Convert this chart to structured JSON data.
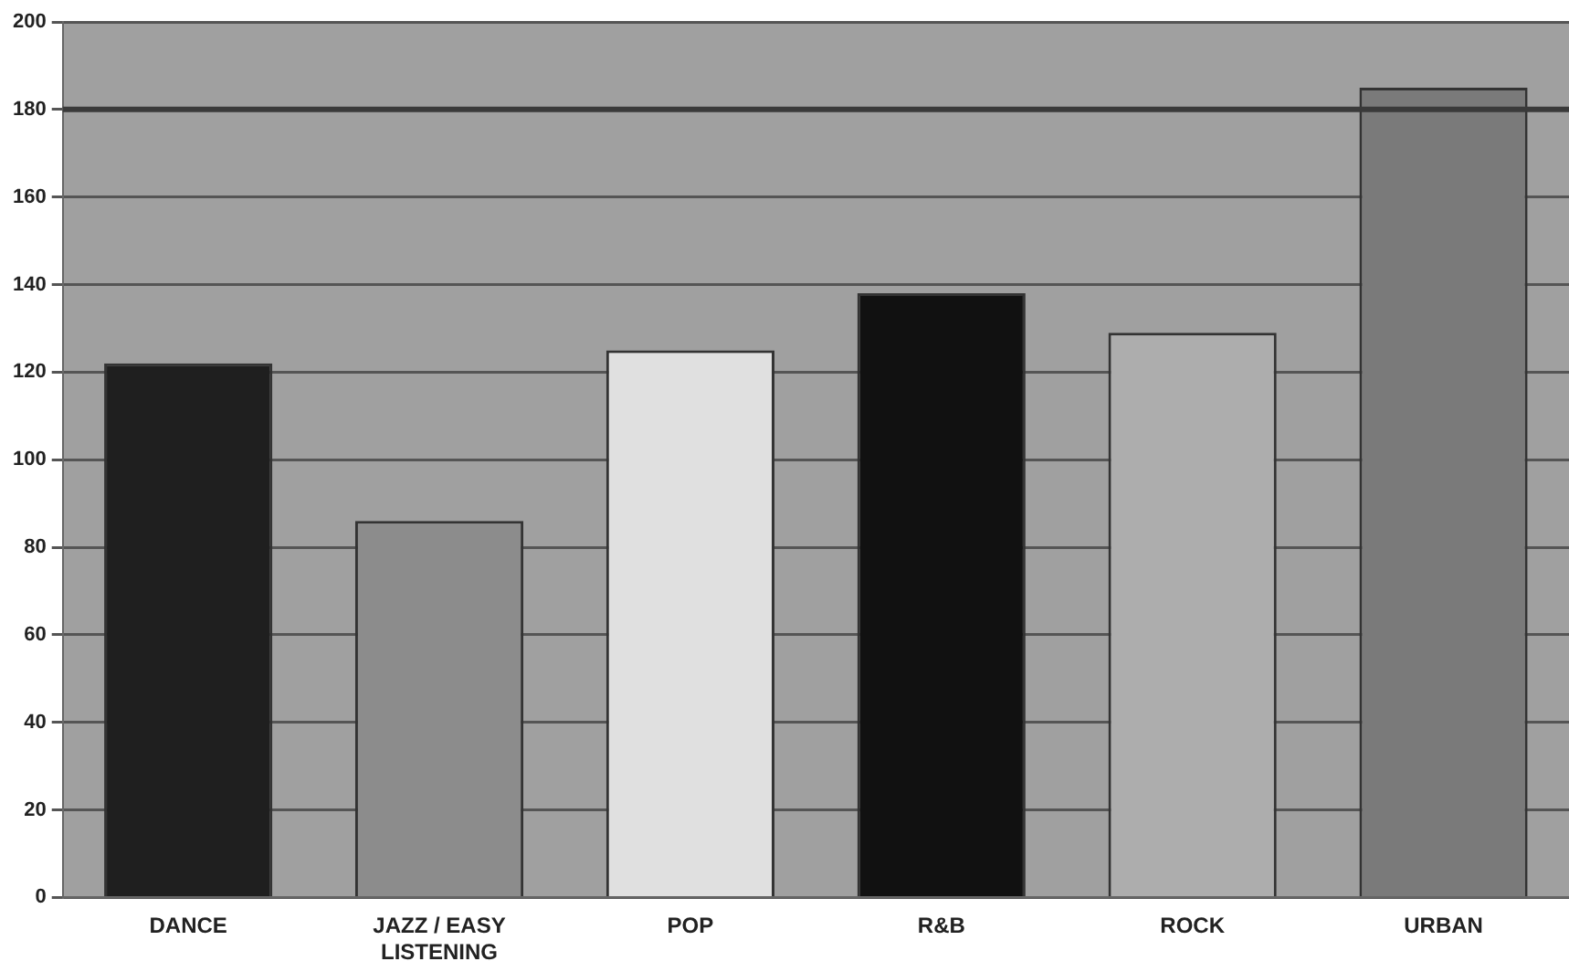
{
  "chart_data": {
    "type": "bar",
    "categories": [
      "DANCE",
      "JAZZ / EASY LISTENING",
      "POP",
      "R&B",
      "ROCK",
      "URBAN"
    ],
    "values": [
      122,
      86,
      125,
      138,
      129,
      185
    ],
    "colors": [
      "#1f1f1f",
      "#8c8c8c",
      "#e0e0e0",
      "#111111",
      "#adadad",
      "#7a7a7a"
    ],
    "ylim": [
      0,
      200
    ],
    "yticks": [
      0,
      20,
      40,
      60,
      80,
      100,
      120,
      140,
      160,
      180,
      200
    ],
    "grid": "y",
    "ref_lines": [
      {
        "axis": "y",
        "value": 180,
        "color": "#3a3a3a"
      }
    ]
  }
}
